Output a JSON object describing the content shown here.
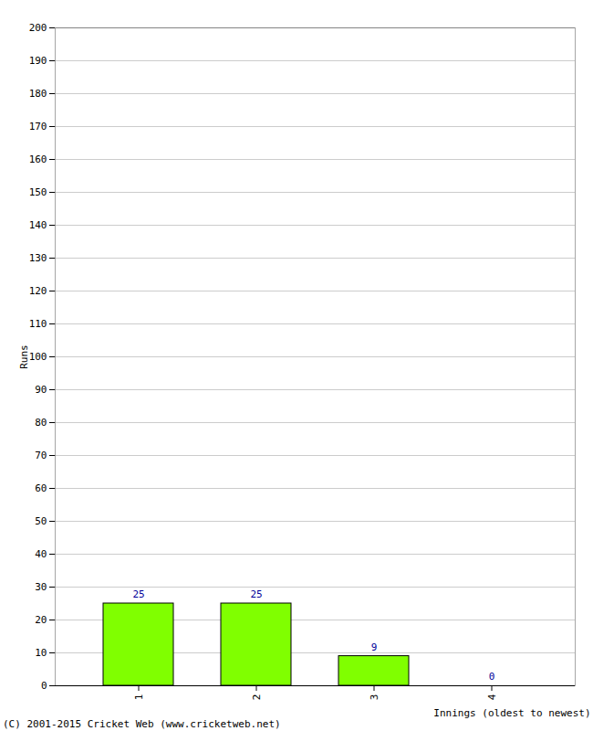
{
  "chart_data": {
    "type": "bar",
    "x_label": "Innings (oldest to newest)",
    "y_label": "Runs",
    "caption": "(C) 2001-2015 Cricket Web (www.cricketweb.net)",
    "categories": [
      "1",
      "2",
      "3",
      "4"
    ],
    "values": [
      25,
      25,
      9,
      0
    ],
    "color": "#80ff00",
    "ylim": [
      0,
      200
    ],
    "yticks": [
      0,
      10,
      20,
      30,
      40,
      50,
      60,
      70,
      80,
      90,
      100,
      110,
      120,
      130,
      140,
      150,
      160,
      170,
      180,
      190,
      200
    ],
    "grid": true,
    "data_labels": true
  }
}
